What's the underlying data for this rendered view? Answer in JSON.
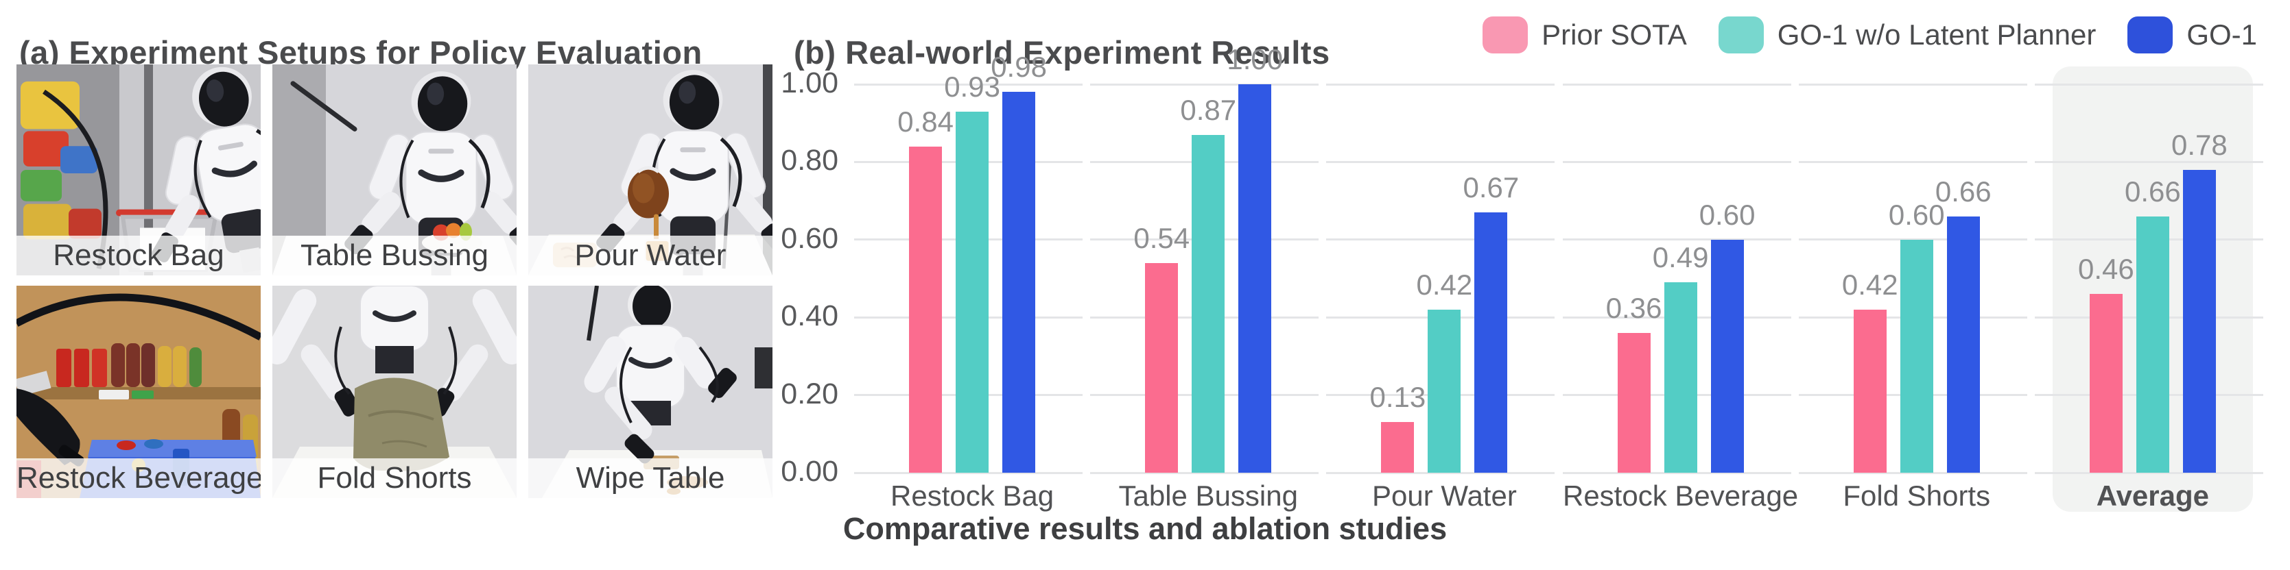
{
  "panel_a": {
    "title": "(a) Experiment Setups for Policy Evaluation",
    "photos": [
      {
        "label": "Restock Bag"
      },
      {
        "label": "Table Bussing"
      },
      {
        "label": "Pour Water"
      },
      {
        "label": "Restock Beverage"
      },
      {
        "label": "Fold Shorts"
      },
      {
        "label": "Wipe Table"
      }
    ]
  },
  "panel_b": {
    "title": "(b) Real-world Experiment Results",
    "caption": "Comparative results and ablation studies",
    "legend": [
      {
        "label": "Prior SOTA",
        "swatch_color": "#F998B2"
      },
      {
        "label": "GO-1 w/o Latent Planner",
        "swatch_color": "#78D7CE"
      },
      {
        "label": "GO-1",
        "swatch_color": "#2E51DB"
      }
    ]
  },
  "chart_data": {
    "type": "bar",
    "title": "(b) Real-world Experiment Results",
    "categories": [
      "Restock Bag",
      "Table Bussing",
      "Pour Water",
      "Restock Beverage",
      "Fold Shorts",
      "Average"
    ],
    "series": [
      {
        "name": "Prior SOTA",
        "color": "#FB6C8F",
        "values": [
          0.84,
          0.54,
          0.13,
          0.36,
          0.42,
          0.46
        ]
      },
      {
        "name": "GO-1 w/o Latent Planner",
        "color": "#53CDC5",
        "values": [
          0.93,
          0.87,
          0.42,
          0.49,
          0.6,
          0.66
        ]
      },
      {
        "name": "GO-1",
        "color": "#3058E4",
        "values": [
          0.98,
          1.0,
          0.67,
          0.6,
          0.66,
          0.78
        ]
      }
    ],
    "xlabel": "",
    "ylabel": "",
    "ylim": [
      0,
      1.0
    ],
    "yticks": [
      0,
      0.2,
      0.4,
      0.6,
      0.8,
      1.0
    ],
    "grid": "horizontal",
    "legend_position": "top-right",
    "value_labels": true,
    "highlighted_category": "Average",
    "highlight_color": "#F2F3F2",
    "gridline_color": "#E4E5E7"
  }
}
